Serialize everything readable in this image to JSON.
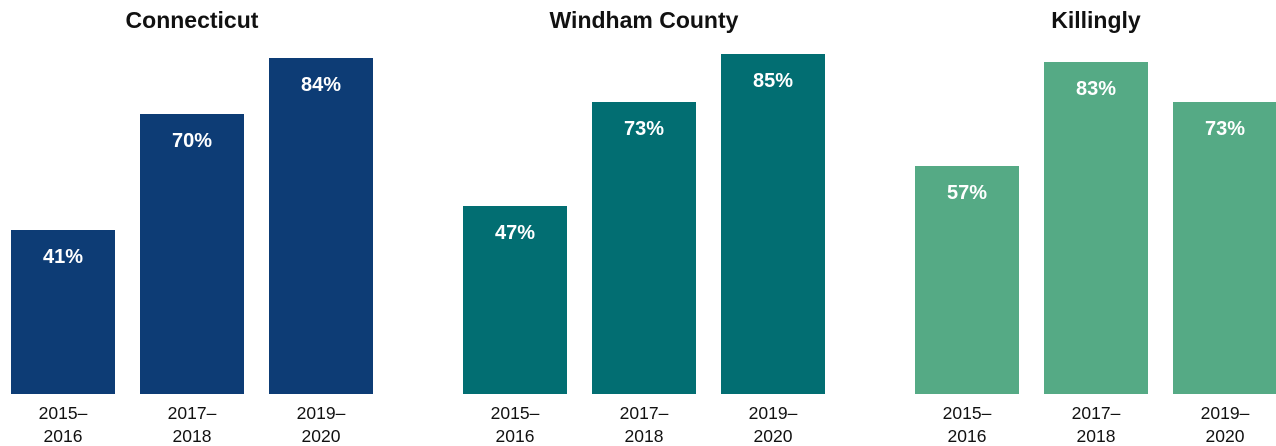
{
  "chart_data": [
    {
      "type": "bar",
      "title": "Connecticut",
      "categories": [
        "2015–2016",
        "2017–2018",
        "2019–2020"
      ],
      "category_lines": [
        [
          "2015–",
          "2016"
        ],
        [
          "2017–",
          "2018"
        ],
        [
          "2019–",
          "2020"
        ]
      ],
      "values": [
        41,
        70,
        84
      ],
      "value_labels": [
        "41%",
        "70%",
        "84%"
      ],
      "color": "#0d3c75",
      "ylim": [
        0,
        100
      ],
      "grid": false
    },
    {
      "type": "bar",
      "title": "Windham County",
      "categories": [
        "2015–2016",
        "2017–2018",
        "2019–2020"
      ],
      "category_lines": [
        [
          "2015–",
          "2016"
        ],
        [
          "2017–",
          "2018"
        ],
        [
          "2019–",
          "2020"
        ]
      ],
      "values": [
        47,
        73,
        85
      ],
      "value_labels": [
        "47%",
        "73%",
        "85%"
      ],
      "color": "#026e72",
      "ylim": [
        0,
        100
      ],
      "grid": false
    },
    {
      "type": "bar",
      "title": "Killingly",
      "categories": [
        "2015–2016",
        "2017–2018",
        "2019–2020"
      ],
      "category_lines": [
        [
          "2015–",
          "2016"
        ],
        [
          "2017–",
          "2018"
        ],
        [
          "2019–",
          "2020"
        ]
      ],
      "values": [
        57,
        83,
        73
      ],
      "value_labels": [
        "57%",
        "83%",
        "73%"
      ],
      "color": "#55aa85",
      "ylim": [
        0,
        100
      ],
      "grid": false
    }
  ]
}
